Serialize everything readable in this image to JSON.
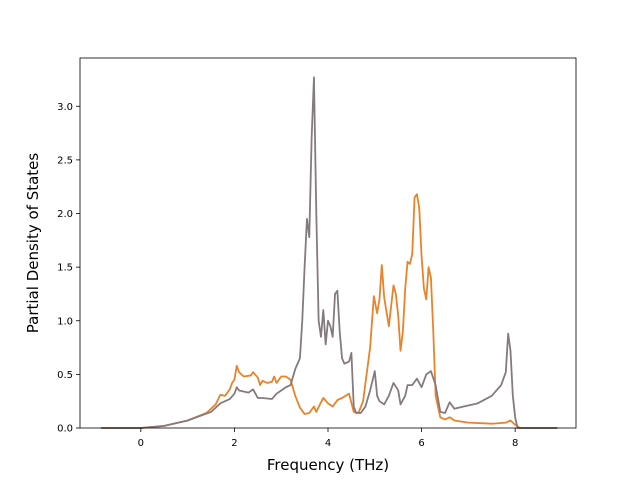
{
  "chart_data": {
    "type": "line",
    "title": "",
    "xlabel": "Frequency (THz)",
    "ylabel": "Partial Density of States",
    "xlim": [
      -1.3,
      9.3
    ],
    "ylim": [
      0.0,
      3.45
    ],
    "xticks": [
      0,
      2,
      4,
      6,
      8
    ],
    "xtick_labels": [
      "0",
      "2",
      "4",
      "6",
      "8"
    ],
    "yticks": [
      0.0,
      0.5,
      1.0,
      1.5,
      2.0,
      2.5,
      3.0
    ],
    "ytick_labels": [
      "0.0",
      "0.5",
      "1.0",
      "1.5",
      "2.0",
      "2.5",
      "3.0"
    ],
    "grid": false,
    "legend": "none",
    "series": [
      {
        "color": "#e8832a",
        "points": [
          [
            -0.85,
            0.0
          ],
          [
            0.0,
            0.0
          ],
          [
            0.5,
            0.02
          ],
          [
            1.0,
            0.07
          ],
          [
            1.4,
            0.14
          ],
          [
            1.6,
            0.22
          ],
          [
            1.7,
            0.31
          ],
          [
            1.8,
            0.3
          ],
          [
            1.9,
            0.36
          ],
          [
            1.95,
            0.42
          ],
          [
            2.0,
            0.45
          ],
          [
            2.05,
            0.58
          ],
          [
            2.1,
            0.52
          ],
          [
            2.2,
            0.48
          ],
          [
            2.35,
            0.49
          ],
          [
            2.4,
            0.52
          ],
          [
            2.5,
            0.47
          ],
          [
            2.55,
            0.4
          ],
          [
            2.6,
            0.44
          ],
          [
            2.7,
            0.42
          ],
          [
            2.8,
            0.43
          ],
          [
            2.85,
            0.48
          ],
          [
            2.9,
            0.42
          ],
          [
            3.0,
            0.48
          ],
          [
            3.1,
            0.48
          ],
          [
            3.2,
            0.45
          ],
          [
            3.3,
            0.3
          ],
          [
            3.4,
            0.19
          ],
          [
            3.5,
            0.13
          ],
          [
            3.6,
            0.14
          ],
          [
            3.7,
            0.2
          ],
          [
            3.75,
            0.15
          ],
          [
            3.85,
            0.24
          ],
          [
            3.9,
            0.28
          ],
          [
            4.0,
            0.23
          ],
          [
            4.1,
            0.2
          ],
          [
            4.2,
            0.26
          ],
          [
            4.3,
            0.28
          ],
          [
            4.45,
            0.32
          ],
          [
            4.55,
            0.15
          ],
          [
            4.65,
            0.14
          ],
          [
            4.75,
            0.25
          ],
          [
            4.9,
            0.75
          ],
          [
            4.98,
            1.23
          ],
          [
            5.05,
            1.07
          ],
          [
            5.1,
            1.2
          ],
          [
            5.15,
            1.52
          ],
          [
            5.2,
            1.22
          ],
          [
            5.3,
            0.95
          ],
          [
            5.4,
            1.33
          ],
          [
            5.45,
            1.25
          ],
          [
            5.5,
            1.05
          ],
          [
            5.55,
            0.72
          ],
          [
            5.6,
            0.9
          ],
          [
            5.65,
            1.3
          ],
          [
            5.7,
            1.55
          ],
          [
            5.75,
            1.53
          ],
          [
            5.8,
            1.62
          ],
          [
            5.85,
            2.15
          ],
          [
            5.9,
            2.18
          ],
          [
            5.95,
            2.05
          ],
          [
            6.0,
            1.6
          ],
          [
            6.05,
            1.3
          ],
          [
            6.1,
            1.2
          ],
          [
            6.15,
            1.5
          ],
          [
            6.2,
            1.4
          ],
          [
            6.25,
            0.9
          ],
          [
            6.3,
            0.3
          ],
          [
            6.4,
            0.1
          ],
          [
            6.5,
            0.08
          ],
          [
            6.6,
            0.1
          ],
          [
            6.7,
            0.07
          ],
          [
            7.0,
            0.05
          ],
          [
            7.5,
            0.04
          ],
          [
            7.8,
            0.05
          ],
          [
            7.9,
            0.07
          ],
          [
            8.0,
            0.03
          ],
          [
            8.1,
            0.0
          ],
          [
            8.9,
            0.0
          ]
        ]
      },
      {
        "color": "#857a7d",
        "points": [
          [
            -0.85,
            0.0
          ],
          [
            0.0,
            0.0
          ],
          [
            0.5,
            0.02
          ],
          [
            1.0,
            0.07
          ],
          [
            1.5,
            0.15
          ],
          [
            1.7,
            0.23
          ],
          [
            1.9,
            0.27
          ],
          [
            2.0,
            0.32
          ],
          [
            2.05,
            0.38
          ],
          [
            2.1,
            0.35
          ],
          [
            2.3,
            0.33
          ],
          [
            2.4,
            0.36
          ],
          [
            2.5,
            0.28
          ],
          [
            2.6,
            0.28
          ],
          [
            2.8,
            0.27
          ],
          [
            2.9,
            0.32
          ],
          [
            3.0,
            0.35
          ],
          [
            3.1,
            0.38
          ],
          [
            3.2,
            0.4
          ],
          [
            3.3,
            0.55
          ],
          [
            3.4,
            0.65
          ],
          [
            3.45,
            1.0
          ],
          [
            3.5,
            1.5
          ],
          [
            3.55,
            1.95
          ],
          [
            3.6,
            1.78
          ],
          [
            3.65,
            2.7
          ],
          [
            3.7,
            3.27
          ],
          [
            3.75,
            2.0
          ],
          [
            3.8,
            1.0
          ],
          [
            3.85,
            0.85
          ],
          [
            3.9,
            1.1
          ],
          [
            3.95,
            0.78
          ],
          [
            4.0,
            1.0
          ],
          [
            4.05,
            0.95
          ],
          [
            4.1,
            0.85
          ],
          [
            4.15,
            1.25
          ],
          [
            4.2,
            1.28
          ],
          [
            4.25,
            0.9
          ],
          [
            4.3,
            0.65
          ],
          [
            4.35,
            0.6
          ],
          [
            4.45,
            0.62
          ],
          [
            4.5,
            0.7
          ],
          [
            4.55,
            0.2
          ],
          [
            4.6,
            0.14
          ],
          [
            4.7,
            0.14
          ],
          [
            4.8,
            0.2
          ],
          [
            4.9,
            0.35
          ],
          [
            5.0,
            0.53
          ],
          [
            5.05,
            0.3
          ],
          [
            5.1,
            0.25
          ],
          [
            5.2,
            0.22
          ],
          [
            5.3,
            0.3
          ],
          [
            5.4,
            0.42
          ],
          [
            5.5,
            0.35
          ],
          [
            5.55,
            0.22
          ],
          [
            5.65,
            0.3
          ],
          [
            5.7,
            0.4
          ],
          [
            5.8,
            0.4
          ],
          [
            5.9,
            0.46
          ],
          [
            6.0,
            0.38
          ],
          [
            6.1,
            0.5
          ],
          [
            6.2,
            0.53
          ],
          [
            6.3,
            0.4
          ],
          [
            6.4,
            0.15
          ],
          [
            6.5,
            0.14
          ],
          [
            6.6,
            0.24
          ],
          [
            6.7,
            0.18
          ],
          [
            6.9,
            0.2
          ],
          [
            7.2,
            0.23
          ],
          [
            7.5,
            0.3
          ],
          [
            7.7,
            0.4
          ],
          [
            7.8,
            0.52
          ],
          [
            7.85,
            0.88
          ],
          [
            7.9,
            0.72
          ],
          [
            7.95,
            0.3
          ],
          [
            8.0,
            0.1
          ],
          [
            8.05,
            0.0
          ],
          [
            8.9,
            0.0
          ]
        ]
      }
    ]
  }
}
